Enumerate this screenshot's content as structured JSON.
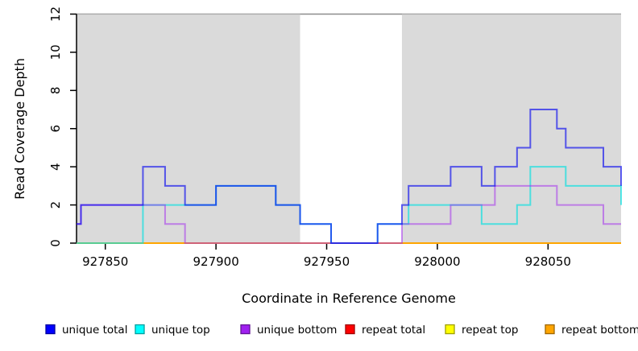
{
  "chart_data": {
    "type": "line",
    "subtype": "step-after-coverage",
    "title": "",
    "xlabel": "Coordinate in Reference Genome",
    "ylabel": "Read Coverage Depth",
    "xlim": [
      927837,
      928083
    ],
    "ylim": [
      0,
      12
    ],
    "xticks": [
      927850,
      927900,
      927950,
      928000,
      928050
    ],
    "yticks": [
      0,
      2,
      4,
      6,
      8,
      10,
      12
    ],
    "grid": false,
    "shaded_regions": {
      "color": "#d2d2d2",
      "regions": [
        [
          927837,
          927938
        ],
        [
          927984,
          928083
        ]
      ]
    },
    "series": [
      {
        "name": "repeat total",
        "color": "#e00000",
        "opacity": 0.85,
        "points": [
          [
            927837,
            0
          ]
        ]
      },
      {
        "name": "repeat top",
        "color": "#ffff00",
        "opacity": 0.9,
        "points": [
          [
            927837,
            0
          ]
        ]
      },
      {
        "name": "repeat bottom",
        "color": "#ffa500",
        "opacity": 1.0,
        "points": [
          [
            927837,
            0
          ]
        ]
      },
      {
        "name": "unique top",
        "color": "#00e0e0",
        "opacity": 0.65,
        "points": [
          [
            927837,
            0
          ],
          [
            927867,
            2
          ],
          [
            927900,
            3
          ],
          [
            927927,
            2
          ],
          [
            927938,
            1
          ],
          [
            927952,
            0
          ],
          [
            927973,
            1
          ],
          [
            927987,
            2
          ],
          [
            928020,
            1
          ],
          [
            928036,
            2
          ],
          [
            928042,
            4
          ],
          [
            928058,
            3
          ],
          [
            928083,
            2
          ]
        ]
      },
      {
        "name": "unique bottom",
        "color": "#a020f0",
        "opacity": 0.5,
        "points": [
          [
            927837,
            1
          ],
          [
            927839,
            2
          ],
          [
            927877,
            1
          ],
          [
            927886,
            0
          ],
          [
            927984,
            1
          ],
          [
            928006,
            2
          ],
          [
            928026,
            3
          ],
          [
            928054,
            2
          ],
          [
            928075,
            1
          ]
        ]
      },
      {
        "name": "unique total",
        "color": "#0000f0",
        "opacity": 0.62,
        "points": [
          [
            927837,
            1
          ],
          [
            927839,
            2
          ],
          [
            927867,
            4
          ],
          [
            927877,
            3
          ],
          [
            927886,
            2
          ],
          [
            927900,
            3
          ],
          [
            927927,
            2
          ],
          [
            927938,
            1
          ],
          [
            927952,
            0
          ],
          [
            927973,
            1
          ],
          [
            927984,
            2
          ],
          [
            927987,
            3
          ],
          [
            928006,
            4
          ],
          [
            928020,
            3
          ],
          [
            928026,
            4
          ],
          [
            928036,
            5
          ],
          [
            928042,
            7
          ],
          [
            928054,
            6
          ],
          [
            928058,
            5
          ],
          [
            928075,
            4
          ],
          [
            928083,
            3
          ]
        ]
      }
    ],
    "legend": {
      "position": "bottom",
      "items": [
        {
          "label": "unique total",
          "color": "#0000ff"
        },
        {
          "label": "unique top",
          "color": "#00ffff"
        },
        {
          "label": "unique bottom",
          "color": "#a020f0"
        },
        {
          "label": "repeat total",
          "color": "#ff0000"
        },
        {
          "label": "repeat top",
          "color": "#ffff00"
        },
        {
          "label": "repeat bottom",
          "color": "#ffa500"
        }
      ]
    }
  }
}
